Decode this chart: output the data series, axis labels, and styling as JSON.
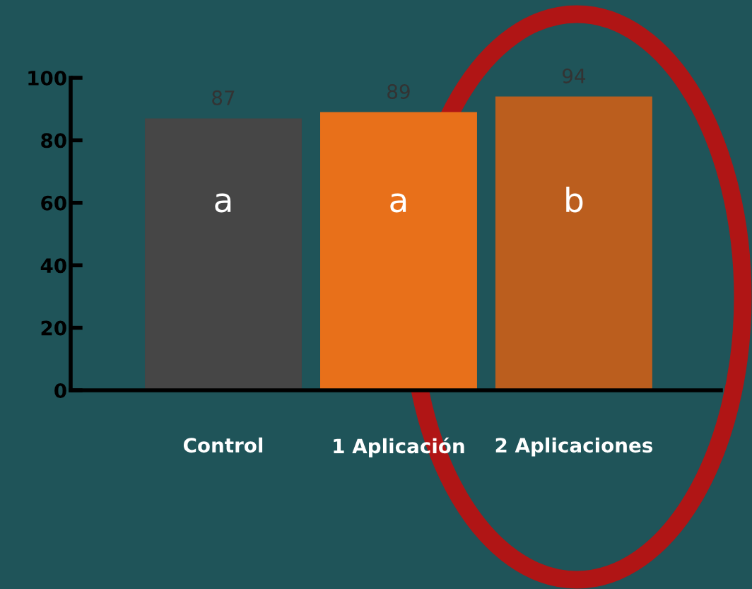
{
  "chart_data": {
    "type": "bar",
    "categories": [
      "Control",
      "1 Aplicación",
      "2 Aplicaciones"
    ],
    "values": [
      87,
      89,
      94
    ],
    "colors": [
      "#464646",
      "#e8701a",
      "#bb5e1e"
    ],
    "ylim": [
      0,
      100
    ],
    "yticks": [
      0,
      20,
      40,
      60,
      80,
      100
    ],
    "data_labels": true,
    "grid": false,
    "legend": false,
    "annotations": [
      "a",
      "a",
      "b"
    ]
  }
}
